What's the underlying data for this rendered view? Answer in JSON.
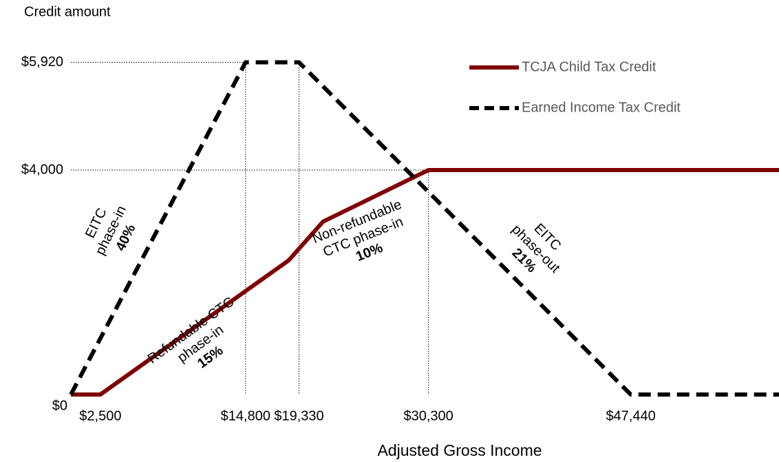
{
  "chart_data": {
    "type": "line",
    "y_label": "Credit amount",
    "x_label": "Adjusted Gross Income",
    "xlim": [
      0,
      60000
    ],
    "ylim": [
      0,
      6000
    ],
    "xticks": [
      {
        "value": 2500,
        "label": "$2,500"
      },
      {
        "value": 14800,
        "label": "$14,800"
      },
      {
        "value": 19330,
        "label": "$19,330"
      },
      {
        "value": 30300,
        "label": "$30,300"
      },
      {
        "value": 47440,
        "label": "$47,440"
      }
    ],
    "yticks": [
      {
        "value": 0,
        "label": "$0"
      },
      {
        "value": 4000,
        "label": "$4,000"
      },
      {
        "value": 5920,
        "label": "$5,920"
      }
    ],
    "legend": "upper right",
    "series": [
      {
        "name": "TCJA Child Tax Credit",
        "color": "#7f0000",
        "dashed": false,
        "x": [
          0,
          2500,
          18450,
          21360,
          30300,
          60000
        ],
        "values": [
          0,
          0,
          2390,
          3080,
          4000,
          4000
        ]
      },
      {
        "name": "Earned Income Tax Credit",
        "color": "#000000",
        "dashed": true,
        "x": [
          0,
          14800,
          19330,
          47440,
          60000
        ],
        "values": [
          0,
          5920,
          5920,
          0,
          0
        ]
      }
    ],
    "annotations": [
      {
        "lines": [
          "EITC",
          "phase-in",
          "40%"
        ]
      },
      {
        "lines": [
          "Refundable CTC",
          "phase-in",
          "15%"
        ]
      },
      {
        "lines": [
          "Non-refundable",
          "CTC phase-in",
          "10%"
        ]
      },
      {
        "lines": [
          "EITC",
          "phase-out",
          "21%"
        ]
      }
    ]
  }
}
